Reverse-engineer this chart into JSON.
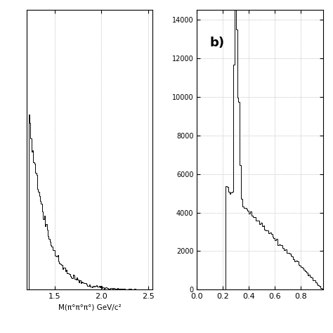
{
  "panel_a": {
    "xlabel": "M(π°π°π°) GeV/c²",
    "xlim": [
      1.2,
      2.55
    ],
    "xticks": [
      1.5,
      2.0,
      2.5
    ],
    "ylim": [
      0,
      1800
    ],
    "color": "#000000",
    "grid_color": "#999999",
    "grid_linestyle": ":"
  },
  "panel_b": {
    "label": "b)",
    "xlim": [
      0,
      0.97
    ],
    "xticks": [
      0.0,
      0.2,
      0.4,
      0.6,
      0.8
    ],
    "ylim": [
      0,
      14500
    ],
    "yticks": [
      0,
      2000,
      4000,
      6000,
      8000,
      10000,
      12000,
      14000
    ],
    "color": "#000000",
    "grid_color": "#999999",
    "grid_linestyle": ":"
  },
  "background_color": "#ffffff",
  "figure_facecolor": "#ffffff"
}
